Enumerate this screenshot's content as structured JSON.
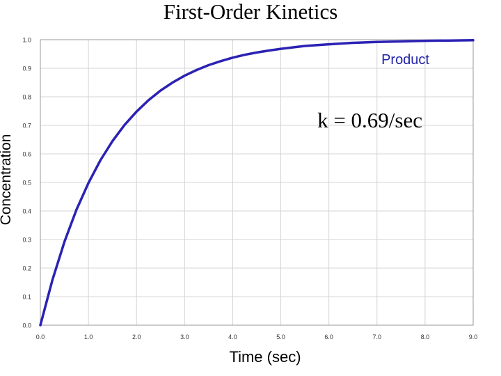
{
  "colors": {
    "series": "#2b22b4",
    "grid": "#d4d4d4",
    "axis": "#9a9a9a",
    "tick_text": "#333333",
    "legend_text": "#1f22a8"
  },
  "chart_data": {
    "type": "line",
    "title": "First-Order Kinetics",
    "xlabel": "Time (sec)",
    "ylabel": "Concentration",
    "xlim": [
      0,
      9
    ],
    "ylim": [
      0,
      1
    ],
    "grid": true,
    "legend_position": "top-right",
    "x_ticks": [
      "0.0",
      "1.0",
      "2.0",
      "3.0",
      "4.0",
      "5.0",
      "6.0",
      "7.0",
      "8.0",
      "9.0"
    ],
    "y_ticks": [
      "0.0",
      "0.1",
      "0.2",
      "0.3",
      "0.4",
      "0.5",
      "0.6",
      "0.7",
      "0.8",
      "0.9",
      "1.0"
    ],
    "annotation": "k = 0.69/sec",
    "series": [
      {
        "name": "Product",
        "x": [
          0,
          0.25,
          0.5,
          0.75,
          1.0,
          1.25,
          1.5,
          1.75,
          2.0,
          2.25,
          2.5,
          2.75,
          3.0,
          3.25,
          3.5,
          3.75,
          4.0,
          4.25,
          4.5,
          4.75,
          5.0,
          5.5,
          6.0,
          6.5,
          7.0,
          7.5,
          8.0,
          8.5,
          9.0
        ],
        "y": [
          0,
          0.158,
          0.292,
          0.404,
          0.498,
          0.578,
          0.645,
          0.701,
          0.748,
          0.788,
          0.822,
          0.85,
          0.874,
          0.894,
          0.911,
          0.925,
          0.937,
          0.947,
          0.955,
          0.962,
          0.968,
          0.978,
          0.984,
          0.989,
          0.992,
          0.994,
          0.996,
          0.997,
          0.998
        ]
      }
    ]
  }
}
